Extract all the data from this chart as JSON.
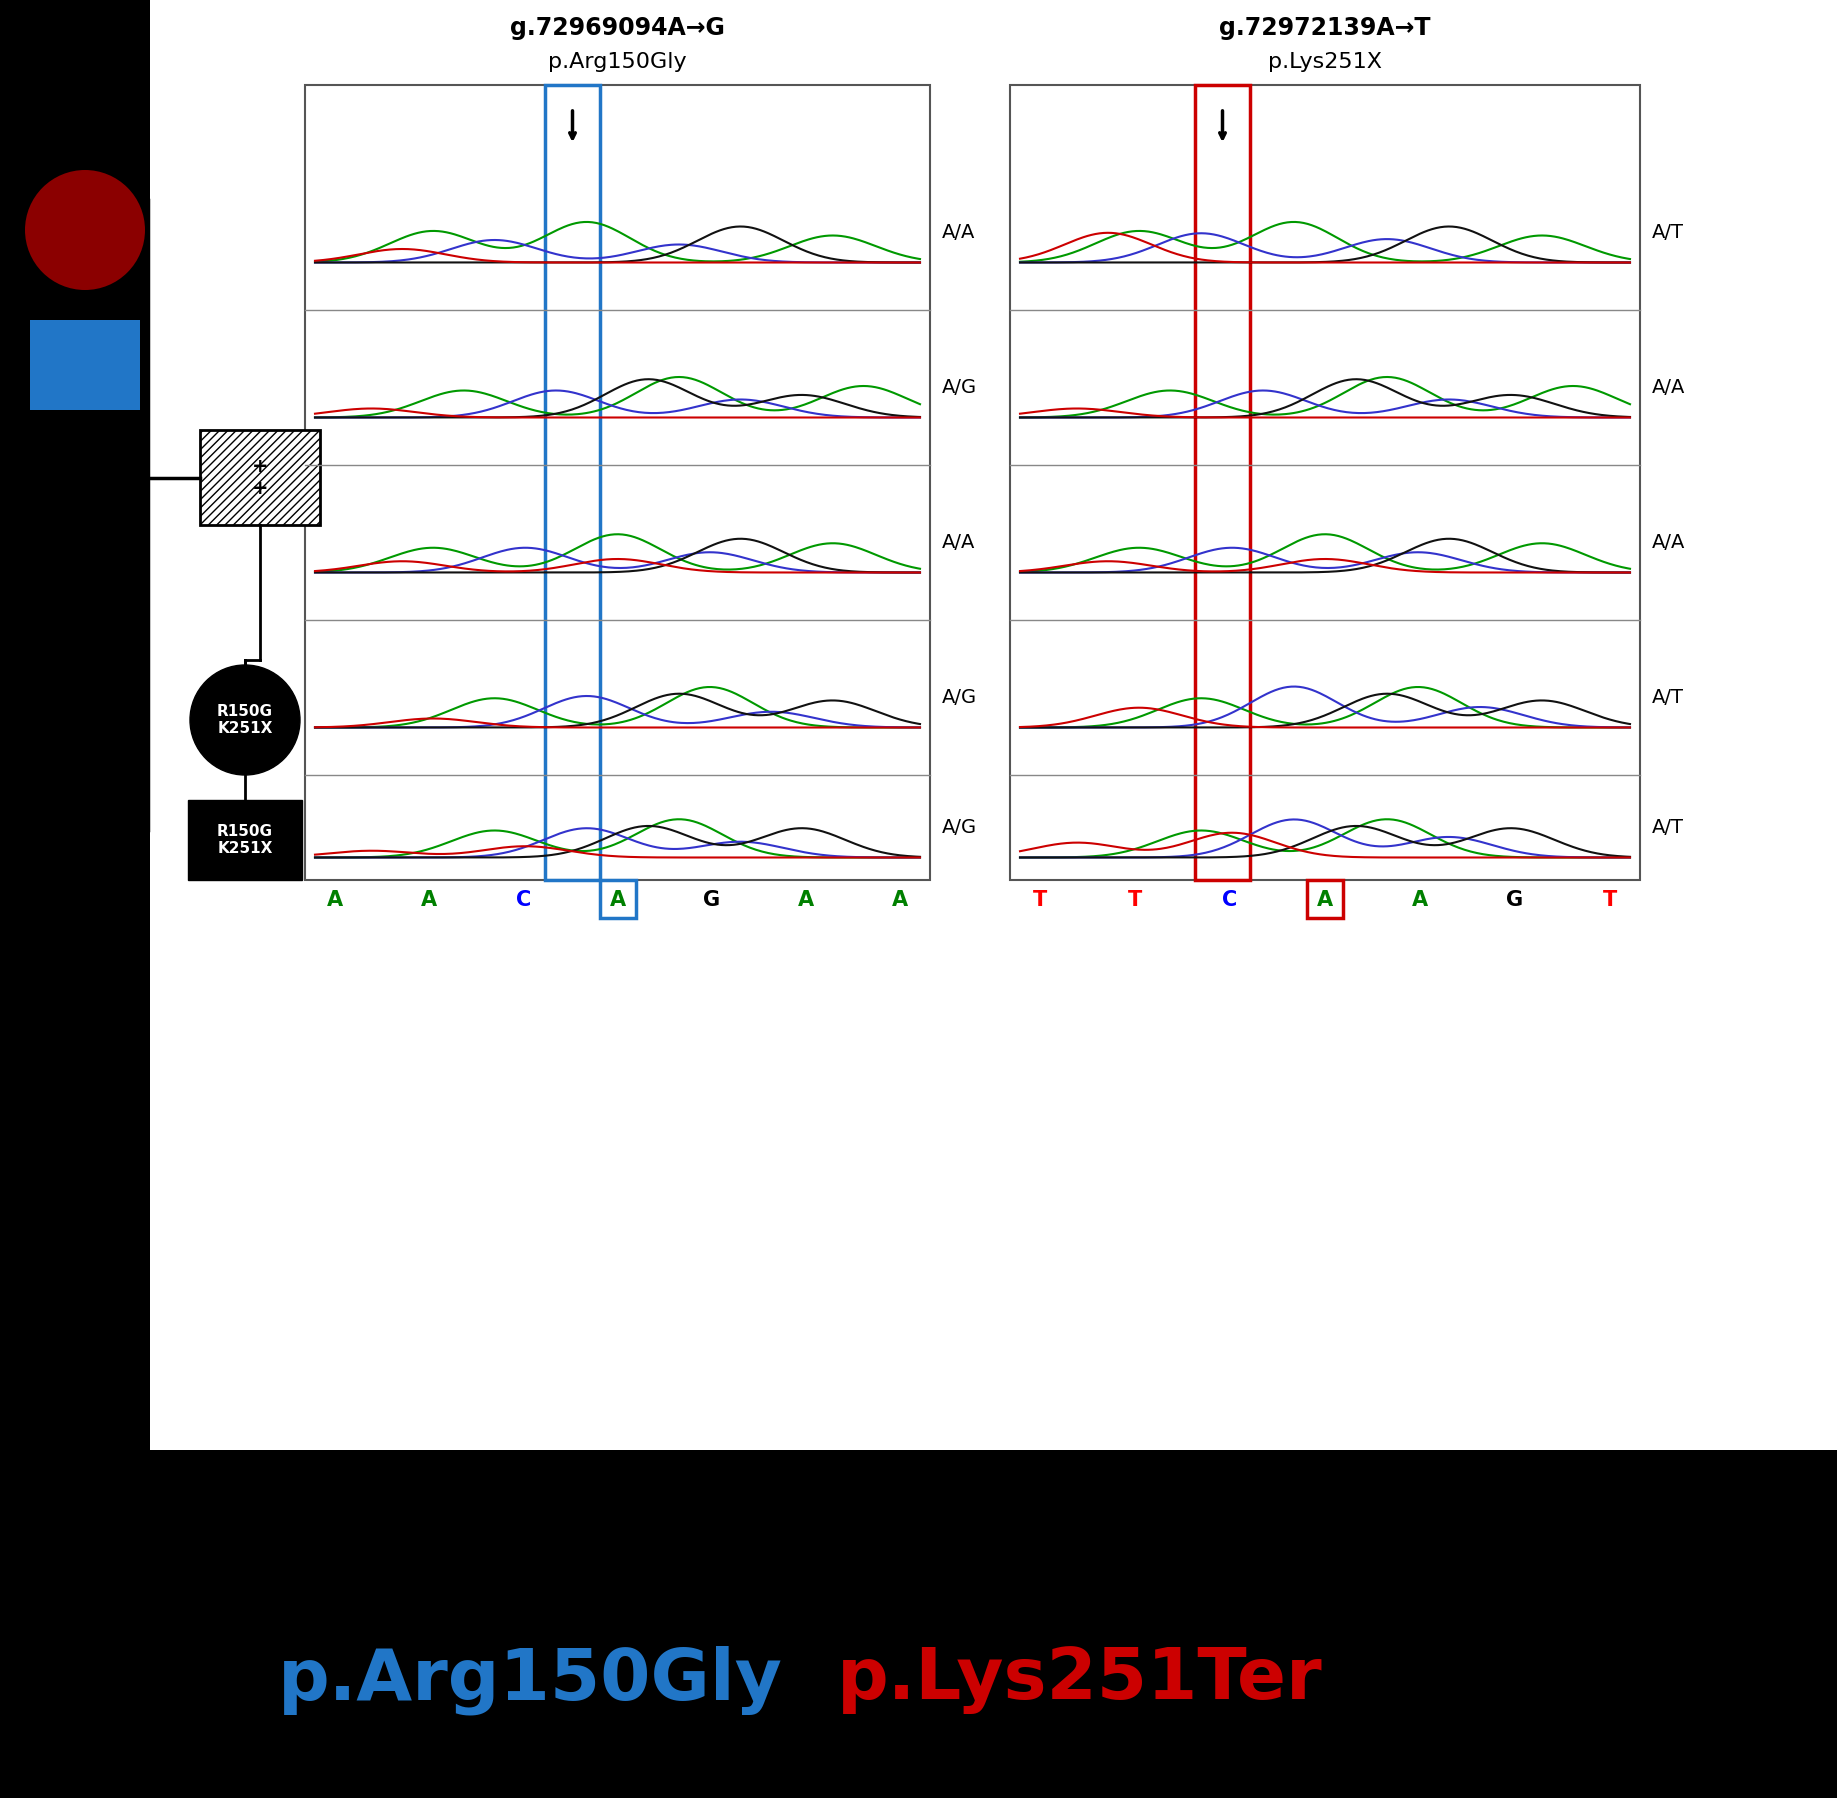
{
  "background_color": "#000000",
  "image_bg": "#ffffff",
  "title1": "g.72969094A→G",
  "subtitle1": "p.Arg150Gly",
  "title2": "g.72972139A→T",
  "subtitle2": "p.Lys251X",
  "label_blue": "p.Arg150Gly",
  "label_red": "p.Lys251Ter",
  "blue_color": "#2176c7",
  "red_color": "#cc0000",
  "dark_red": "#8b0000",
  "row_labels_left": [
    "A/A",
    "A/G",
    "A/A",
    "A/G",
    "A/G"
  ],
  "row_labels_right": [
    "A/T",
    "A/A",
    "A/A",
    "A/T",
    "A/T"
  ],
  "pedigree_father_label": "+\n+",
  "child1_label": "R150G\nK251X",
  "child2_label": "R150G\nK251X"
}
